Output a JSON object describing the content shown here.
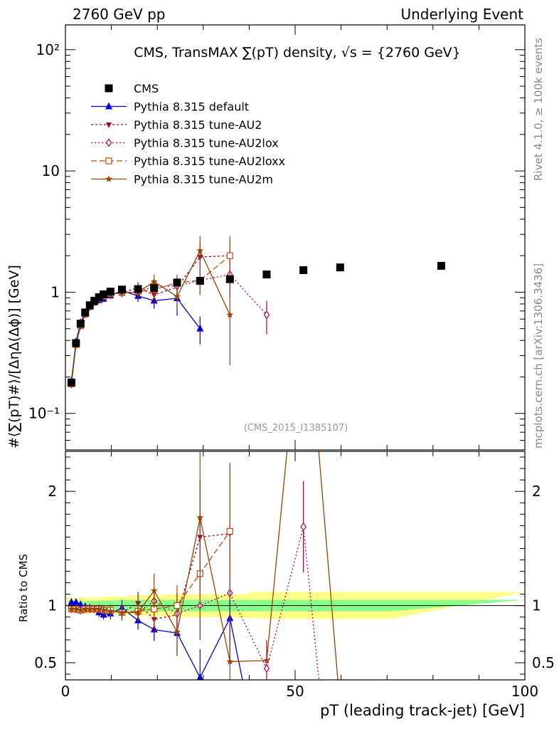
{
  "header": {
    "left": "2760 GeV pp",
    "right": "Underlying Event"
  },
  "side_labels": {
    "rivet": "Rivet 4.1.0, ≥ 100k events",
    "mcplots": "mcplots.cern.ch [arXiv:1306.3436]"
  },
  "colors": {
    "cms": "#000000",
    "default": "#0000dd",
    "au2": "#990033",
    "au2lox": "#aa0055",
    "au2loxx": "#cc4400",
    "au2m": "#994400",
    "band_inner": "#88ff88",
    "band_outer": "#ffff88"
  },
  "chart_data": {
    "type": "scatter",
    "title": "CMS, TransMAX ∑(pT) density, √s = {2760 GeV}",
    "watermark": "(CMS_2015_I1385107)",
    "xlabel": "pT (leading track-jet) [GeV]",
    "ylabel_main": "#⟨∑(pT)#⟩/[ΔηΔ(Δϕ)] [GeV]",
    "ylabel_ratio": "Ratio to CMS",
    "xlim": [
      0,
      100
    ],
    "ylim_main": [
      0.05,
      160
    ],
    "ylim_ratio": [
      0.35,
      2.35
    ],
    "yscale_main": "log",
    "x_ticks": [
      "0",
      "50",
      "100"
    ],
    "y_ticks_main": [
      "10⁻¹",
      "1",
      "10",
      "10²"
    ],
    "y_ticks_ratio": [
      "0.5",
      "1",
      "2"
    ],
    "legend": [
      "CMS",
      "Pythia 8.315 default",
      "Pythia 8.315 tune-AU2",
      "Pythia 8.315 tune-AU2lox",
      "Pythia 8.315 tune-AU2loxx",
      "Pythia 8.315 tune-AU2m"
    ],
    "reference": {
      "name": "CMS",
      "x": [
        1.3,
        2.3,
        3.3,
        4.3,
        5.3,
        6.3,
        7.3,
        8.3,
        9.8,
        12.3,
        15.8,
        19.3,
        24.3,
        29.3,
        35.8,
        43.8,
        51.8,
        59.8,
        81.8
      ],
      "y": [
        0.18,
        0.38,
        0.55,
        0.68,
        0.78,
        0.85,
        0.91,
        0.96,
        1.01,
        1.05,
        1.06,
        1.08,
        1.2,
        1.24,
        1.28,
        1.4,
        1.52,
        1.6,
        1.65
      ],
      "band_inner": [
        0.04,
        0.04,
        0.04,
        0.04,
        0.04,
        0.04,
        0.045,
        0.045,
        0.045,
        0.05,
        0.05,
        0.05,
        0.05,
        0.05,
        0.05,
        0.05,
        0.05,
        0.05,
        0.05
      ],
      "band_outer": [
        0.07,
        0.07,
        0.07,
        0.07,
        0.07,
        0.07,
        0.07,
        0.08,
        0.08,
        0.08,
        0.09,
        0.09,
        0.1,
        0.1,
        0.1,
        0.12,
        0.12,
        0.12,
        0.12
      ]
    },
    "series": [
      {
        "name": "Pythia 8.315 default",
        "key": "default",
        "marker": "triangle",
        "dash": "",
        "x": [
          1.3,
          2.3,
          3.3,
          4.3,
          5.3,
          6.3,
          7.3,
          8.3,
          9.8,
          12.3,
          15.8,
          19.3,
          24.3,
          29.3
        ],
        "y": [
          0.185,
          0.39,
          0.56,
          0.68,
          0.76,
          0.82,
          0.86,
          0.88,
          0.94,
          1.03,
          0.93,
          0.85,
          0.89,
          0.5
        ],
        "err": [
          0.01,
          0.02,
          0.03,
          0.03,
          0.04,
          0.04,
          0.05,
          0.05,
          0.06,
          0.08,
          0.1,
          0.12,
          0.25,
          0.13
        ],
        "ratio": [
          1.03,
          1.03,
          1.01,
          0.99,
          0.98,
          0.97,
          0.94,
          0.92,
          0.93,
          0.98,
          0.87,
          0.79,
          0.76,
          0.37,
          0.89,
          0.1
        ],
        "ratio_x": [
          1.3,
          2.3,
          3.3,
          4.3,
          5.3,
          6.3,
          7.3,
          8.3,
          9.8,
          12.3,
          15.8,
          19.3,
          24.3,
          29.3,
          35.8,
          39.8
        ],
        "ratio_err": [
          0.02,
          0.02,
          0.02,
          0.03,
          0.03,
          0.03,
          0.04,
          0.04,
          0.05,
          0.07,
          0.08,
          0.1,
          0.2,
          0.25,
          0.4,
          0.0
        ]
      },
      {
        "name": "Pythia 8.315 tune-AU2",
        "key": "au2",
        "marker": "triangle-down",
        "dash": "3,3",
        "x": [
          1.3,
          2.3,
          3.3,
          4.3,
          5.3,
          6.3,
          7.3,
          8.3,
          9.8,
          12.3,
          15.8,
          19.3,
          24.3,
          29.3,
          35.8
        ],
        "y": [
          0.175,
          0.37,
          0.53,
          0.66,
          0.76,
          0.83,
          0.88,
          0.92,
          0.96,
          0.99,
          1.09,
          0.95,
          1.1,
          1.95,
          2.0
        ],
        "err": [
          0.01,
          0.02,
          0.03,
          0.03,
          0.04,
          0.04,
          0.05,
          0.05,
          0.06,
          0.08,
          0.12,
          0.15,
          0.25,
          0.6,
          0.7
        ],
        "ratio": [
          0.97,
          0.97,
          0.96,
          0.97,
          0.97,
          0.97,
          0.96,
          0.96,
          0.95,
          0.94,
          1.02,
          0.88,
          0.92,
          1.6,
          1.63
        ],
        "ratio_x": [
          1.3,
          2.3,
          3.3,
          4.3,
          5.3,
          6.3,
          7.3,
          8.3,
          9.8,
          12.3,
          15.8,
          19.3,
          24.3,
          29.3,
          35.8
        ],
        "ratio_err": [
          0.02,
          0.02,
          0.02,
          0.03,
          0.03,
          0.03,
          0.04,
          0.04,
          0.05,
          0.07,
          0.1,
          0.12,
          0.2,
          0.5,
          0.6
        ]
      },
      {
        "name": "Pythia 8.315 tune-AU2lox",
        "key": "au2lox",
        "marker": "diamond-open",
        "dash": "2,3",
        "x": [
          1.3,
          2.3,
          3.3,
          4.3,
          5.3,
          6.3,
          7.3,
          8.3,
          9.8,
          12.3,
          15.8,
          19.3,
          24.3,
          29.3,
          35.8,
          43.8
        ],
        "y": [
          0.175,
          0.37,
          0.53,
          0.66,
          0.76,
          0.83,
          0.89,
          0.92,
          0.96,
          0.99,
          1.0,
          1.12,
          1.12,
          1.25,
          1.4,
          0.65
        ],
        "err": [
          0.01,
          0.02,
          0.03,
          0.03,
          0.04,
          0.04,
          0.05,
          0.05,
          0.06,
          0.08,
          0.1,
          0.15,
          0.2,
          0.3,
          0.5,
          0.2
        ],
        "ratio": [
          0.97,
          0.97,
          0.96,
          0.97,
          0.97,
          0.97,
          0.97,
          0.96,
          0.95,
          0.94,
          0.94,
          1.04,
          0.93,
          1.0,
          1.11,
          0.45,
          1.69,
          0.1
        ],
        "ratio_x": [
          1.3,
          2.3,
          3.3,
          4.3,
          5.3,
          6.3,
          7.3,
          8.3,
          9.8,
          12.3,
          15.8,
          19.3,
          24.3,
          29.3,
          35.8,
          43.8,
          51.8,
          55.8
        ],
        "ratio_err": [
          0.02,
          0.02,
          0.02,
          0.03,
          0.03,
          0.03,
          0.04,
          0.04,
          0.05,
          0.07,
          0.08,
          0.12,
          0.18,
          0.3,
          0.45,
          0.25,
          0.4,
          0.0
        ]
      },
      {
        "name": "Pythia 8.315 tune-AU2loxx",
        "key": "au2loxx",
        "marker": "square-open",
        "dash": "8,4",
        "x": [
          1.3,
          2.3,
          3.3,
          4.3,
          5.3,
          6.3,
          7.3,
          8.3,
          9.8,
          12.3,
          15.8,
          19.3,
          24.3,
          29.3,
          35.8
        ],
        "y": [
          0.175,
          0.37,
          0.53,
          0.66,
          0.76,
          0.83,
          0.89,
          0.92,
          0.97,
          0.99,
          1.01,
          1.05,
          1.2,
          1.25,
          2.0
        ],
        "err": [
          0.01,
          0.02,
          0.03,
          0.03,
          0.04,
          0.04,
          0.05,
          0.05,
          0.06,
          0.08,
          0.1,
          0.15,
          0.2,
          0.3,
          0.9
        ],
        "ratio": [
          0.97,
          0.97,
          0.96,
          0.97,
          0.97,
          0.97,
          0.97,
          0.96,
          0.96,
          0.94,
          0.95,
          0.97,
          1.0,
          1.28,
          1.65
        ],
        "ratio_x": [
          1.3,
          2.3,
          3.3,
          4.3,
          5.3,
          6.3,
          7.3,
          8.3,
          9.8,
          12.3,
          15.8,
          19.3,
          24.3,
          29.3,
          35.8
        ],
        "ratio_err": [
          0.02,
          0.02,
          0.02,
          0.03,
          0.03,
          0.03,
          0.04,
          0.04,
          0.05,
          0.07,
          0.08,
          0.12,
          0.18,
          0.4,
          0.6
        ]
      },
      {
        "name": "Pythia 8.315 tune-AU2m",
        "key": "au2m",
        "marker": "star",
        "dash": "",
        "x": [
          1.3,
          2.3,
          3.3,
          4.3,
          5.3,
          6.3,
          7.3,
          8.3,
          9.8,
          12.3,
          15.8,
          19.3,
          24.3,
          29.3,
          35.8
        ],
        "y": [
          0.175,
          0.37,
          0.53,
          0.66,
          0.76,
          0.83,
          0.89,
          0.92,
          0.96,
          0.99,
          1.0,
          1.22,
          0.92,
          2.2,
          0.65
        ],
        "err": [
          0.01,
          0.02,
          0.03,
          0.03,
          0.04,
          0.04,
          0.05,
          0.05,
          0.06,
          0.08,
          0.1,
          0.18,
          0.2,
          0.7,
          0.4
        ],
        "ratio": [
          0.97,
          0.97,
          0.96,
          0.97,
          0.97,
          0.97,
          0.97,
          0.96,
          0.95,
          0.94,
          0.94,
          1.13,
          0.77,
          1.77,
          0.51,
          0.52,
          3.0,
          3.0,
          0.1
        ],
        "ratio_x": [
          1.3,
          2.3,
          3.3,
          4.3,
          5.3,
          6.3,
          7.3,
          8.3,
          9.8,
          12.3,
          15.8,
          19.3,
          24.3,
          29.3,
          35.8,
          43.8,
          49.8,
          53.8,
          59.8
        ],
        "ratio_err": [
          0.02,
          0.02,
          0.02,
          0.03,
          0.03,
          0.03,
          0.04,
          0.04,
          0.05,
          0.07,
          0.08,
          0.15,
          0.2,
          0.6,
          0.4,
          0.0,
          0.0,
          0.0,
          0.0
        ]
      }
    ]
  }
}
